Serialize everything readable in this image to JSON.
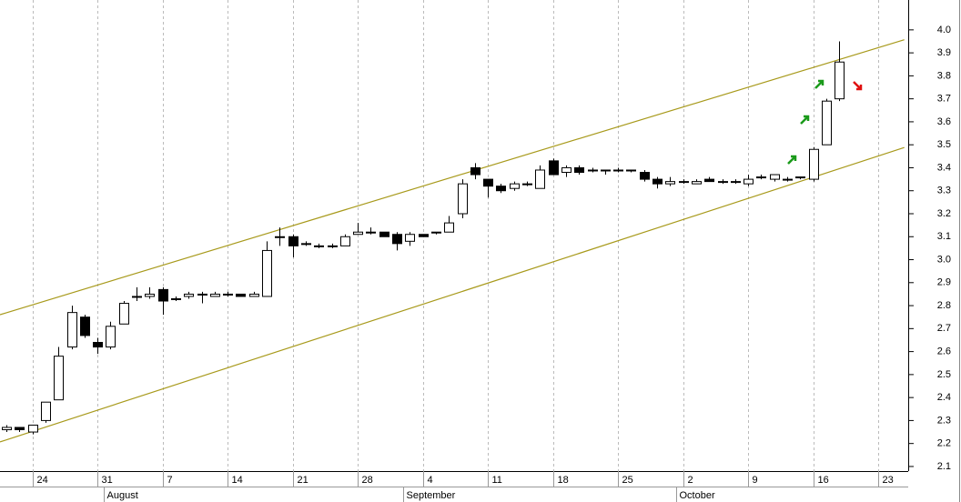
{
  "chart_data": {
    "type": "candlestick",
    "categories": [
      null,
      null,
      "24",
      null,
      null,
      null,
      null,
      "31",
      null,
      null,
      null,
      null,
      "7",
      null,
      null,
      null,
      null,
      "14",
      null,
      null,
      null,
      null,
      "21",
      null,
      null,
      null,
      null,
      "28",
      null,
      null,
      null,
      null,
      "4",
      null,
      null,
      null,
      null,
      "11",
      null,
      null,
      null,
      null,
      "18",
      null,
      null,
      null,
      null,
      "25",
      null,
      null,
      null,
      null,
      "2",
      null,
      null,
      null,
      null,
      "9",
      null,
      null,
      null,
      null,
      "16",
      null,
      null,
      null,
      null,
      "23",
      null,
      null
    ],
    "month_labels": [
      null,
      null,
      null,
      null,
      null,
      null,
      null,
      null,
      "August",
      null,
      null,
      null,
      null,
      null,
      null,
      null,
      null,
      null,
      null,
      null,
      null,
      null,
      null,
      null,
      null,
      null,
      null,
      null,
      null,
      null,
      null,
      "September",
      null,
      null,
      null,
      null,
      null,
      null,
      null,
      null,
      null,
      null,
      null,
      null,
      null,
      null,
      null,
      null,
      null,
      null,
      null,
      null,
      "October",
      null,
      null,
      null,
      null,
      null,
      null,
      null,
      null,
      null,
      null,
      null,
      null,
      null,
      null,
      null,
      null,
      null
    ],
    "open": [
      2.26,
      2.27,
      2.25,
      2.3,
      2.39,
      2.62,
      2.75,
      2.64,
      2.62,
      2.72,
      2.84,
      2.84,
      2.87,
      2.83,
      2.84,
      2.85,
      2.84,
      2.85,
      2.85,
      2.84,
      2.84,
      3.1,
      3.1,
      3.07,
      3.06,
      3.06,
      3.06,
      3.11,
      3.12,
      3.12,
      3.11,
      3.08,
      3.11,
      3.12,
      3.12,
      3.2,
      3.4,
      3.35,
      3.32,
      3.31,
      3.33,
      3.31,
      3.43,
      3.38,
      3.4,
      3.39,
      3.39,
      3.39,
      3.39,
      3.38,
      3.35,
      3.33,
      3.34,
      3.33,
      3.35,
      3.34,
      3.34,
      3.33,
      3.36,
      3.35,
      3.35,
      3.36,
      3.35,
      3.5,
      3.7,
      null,
      null,
      null,
      null,
      null
    ],
    "high": [
      2.28,
      2.27,
      2.28,
      2.38,
      2.62,
      2.8,
      2.76,
      2.66,
      2.73,
      2.82,
      2.88,
      2.88,
      2.88,
      2.84,
      2.86,
      2.86,
      2.86,
      2.86,
      2.85,
      2.86,
      3.08,
      3.14,
      3.11,
      3.08,
      3.07,
      3.07,
      3.11,
      3.16,
      3.14,
      3.12,
      3.12,
      3.12,
      3.11,
      3.12,
      3.19,
      3.35,
      3.42,
      3.35,
      3.33,
      3.34,
      3.34,
      3.41,
      3.44,
      3.41,
      3.41,
      3.4,
      3.39,
      3.4,
      3.39,
      3.39,
      3.36,
      3.36,
      3.35,
      3.35,
      3.36,
      3.35,
      3.35,
      3.37,
      3.37,
      3.37,
      3.36,
      3.36,
      3.49,
      3.7,
      3.95,
      null,
      null,
      null,
      null,
      null
    ],
    "low": [
      2.25,
      2.25,
      2.24,
      2.29,
      2.39,
      2.61,
      2.66,
      2.59,
      2.61,
      2.72,
      2.82,
      2.83,
      2.76,
      2.82,
      2.83,
      2.81,
      2.84,
      2.84,
      2.84,
      2.84,
      2.84,
      3.06,
      3.01,
      3.06,
      3.05,
      3.05,
      3.06,
      3.11,
      3.11,
      3.1,
      3.04,
      3.06,
      3.1,
      3.11,
      3.12,
      3.18,
      3.35,
      3.27,
      3.29,
      3.3,
      3.32,
      3.31,
      3.37,
      3.36,
      3.37,
      3.38,
      3.37,
      3.38,
      3.38,
      3.34,
      3.31,
      3.32,
      3.33,
      3.33,
      3.34,
      3.33,
      3.33,
      3.32,
      3.35,
      3.34,
      3.34,
      3.35,
      3.34,
      3.5,
      3.69,
      null,
      null,
      null,
      null,
      null
    ],
    "close": [
      2.27,
      2.26,
      2.28,
      2.38,
      2.58,
      2.77,
      2.67,
      2.62,
      2.71,
      2.81,
      2.84,
      2.85,
      2.82,
      2.83,
      2.85,
      2.85,
      2.85,
      2.85,
      2.84,
      2.85,
      3.04,
      3.1,
      3.06,
      3.07,
      3.06,
      3.06,
      3.1,
      3.12,
      3.12,
      3.1,
      3.07,
      3.11,
      3.1,
      3.12,
      3.16,
      3.33,
      3.37,
      3.32,
      3.3,
      3.33,
      3.33,
      3.39,
      3.37,
      3.4,
      3.38,
      3.39,
      3.39,
      3.39,
      3.39,
      3.35,
      3.33,
      3.34,
      3.34,
      3.34,
      3.34,
      3.34,
      3.34,
      3.35,
      3.36,
      3.37,
      3.35,
      3.36,
      3.48,
      3.69,
      3.86,
      null,
      null,
      null,
      null,
      null
    ],
    "trend_lines": [
      {
        "values": [
          2.769,
          3.957
        ],
        "color": "#a89a1c"
      },
      {
        "values": [
          2.216,
          3.488
        ],
        "color": "#a89a1c"
      }
    ],
    "ylim": [
      2.08,
      4.13
    ],
    "yticks": [
      2.1,
      2.2,
      2.3,
      2.4,
      2.5,
      2.6,
      2.7,
      2.8,
      2.9,
      {
        "value": 3.0,
        "label": "3.0"
      },
      3.1,
      3.2,
      3.3,
      3.4,
      3.5,
      3.6,
      3.7,
      3.8,
      3.9,
      {
        "value": 4.0,
        "label": "4.0"
      }
    ],
    "grid": true
  }
}
